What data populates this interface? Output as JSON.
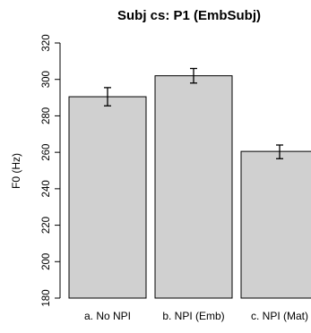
{
  "chart_data": {
    "type": "bar",
    "title": "Subj cs: P1 (EmbSubj)",
    "xlabel": "",
    "ylabel": "F0 (Hz)",
    "categories": [
      "a. No NPI",
      "b. NPI (Emb)",
      "c. NPI (Mat)"
    ],
    "values": [
      290.5,
      302,
      260.5
    ],
    "error_low": [
      285.5,
      298,
      256.5
    ],
    "error_high": [
      295.5,
      306,
      264
    ],
    "ylim": [
      180,
      320
    ],
    "yticks": [
      180,
      200,
      220,
      240,
      260,
      280,
      300,
      320
    ],
    "grid": false,
    "colors": {
      "bar_fill": "#d0d0d0",
      "bar_stroke": "#000000",
      "error_bar": "#000000"
    }
  }
}
